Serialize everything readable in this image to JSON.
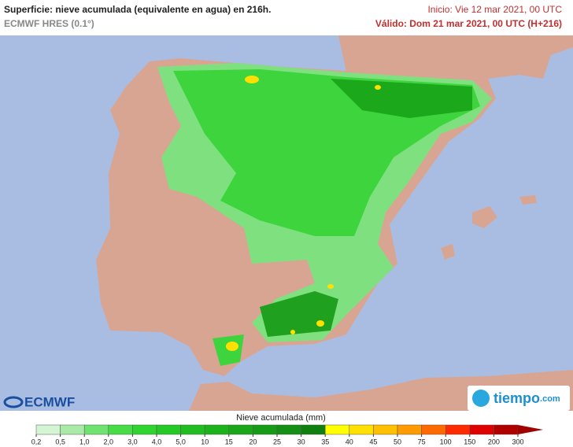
{
  "header": {
    "title": "Superficie: nieve acumulada (equivalente en agua) en 216h.",
    "model": "ECMWF HRES (0.1°)",
    "init": "Inicio: Vie 12 mar 2021, 00 UTC",
    "valid": "Válido: Dom 21 mar 2021, 00 UTC (H+216)"
  },
  "logos": {
    "left": "ECMWF",
    "right": "tiempo",
    "right_suffix": ".com"
  },
  "legend": {
    "title": "Nieve acumulada (mm)",
    "colors": [
      "#d4f5d4",
      "#a9eaa9",
      "#6fe36f",
      "#45dc45",
      "#2fd42f",
      "#25c925",
      "#20bd20",
      "#1cb21c",
      "#19a719",
      "#169b16",
      "#138f13",
      "#0f7f0f",
      "#ffff00",
      "#ffe000",
      "#ffc000",
      "#ff9a00",
      "#ff6a00",
      "#ff2a00",
      "#e00000",
      "#b00000"
    ],
    "arrow_color": "#a00000",
    "ticks": [
      {
        "value": 0.2,
        "label": "0,2"
      },
      {
        "value": 0.5,
        "label": "0,5"
      },
      {
        "value": 1.0,
        "label": "1,0"
      },
      {
        "value": 2.0,
        "label": "2,0"
      },
      {
        "value": 3.0,
        "label": "3,0"
      },
      {
        "value": 4.0,
        "label": "4,0"
      },
      {
        "value": 5.0,
        "label": "5,0"
      },
      10,
      15,
      20,
      25,
      30,
      35,
      40,
      45,
      50,
      75,
      100,
      150,
      200,
      300
    ]
  }
}
